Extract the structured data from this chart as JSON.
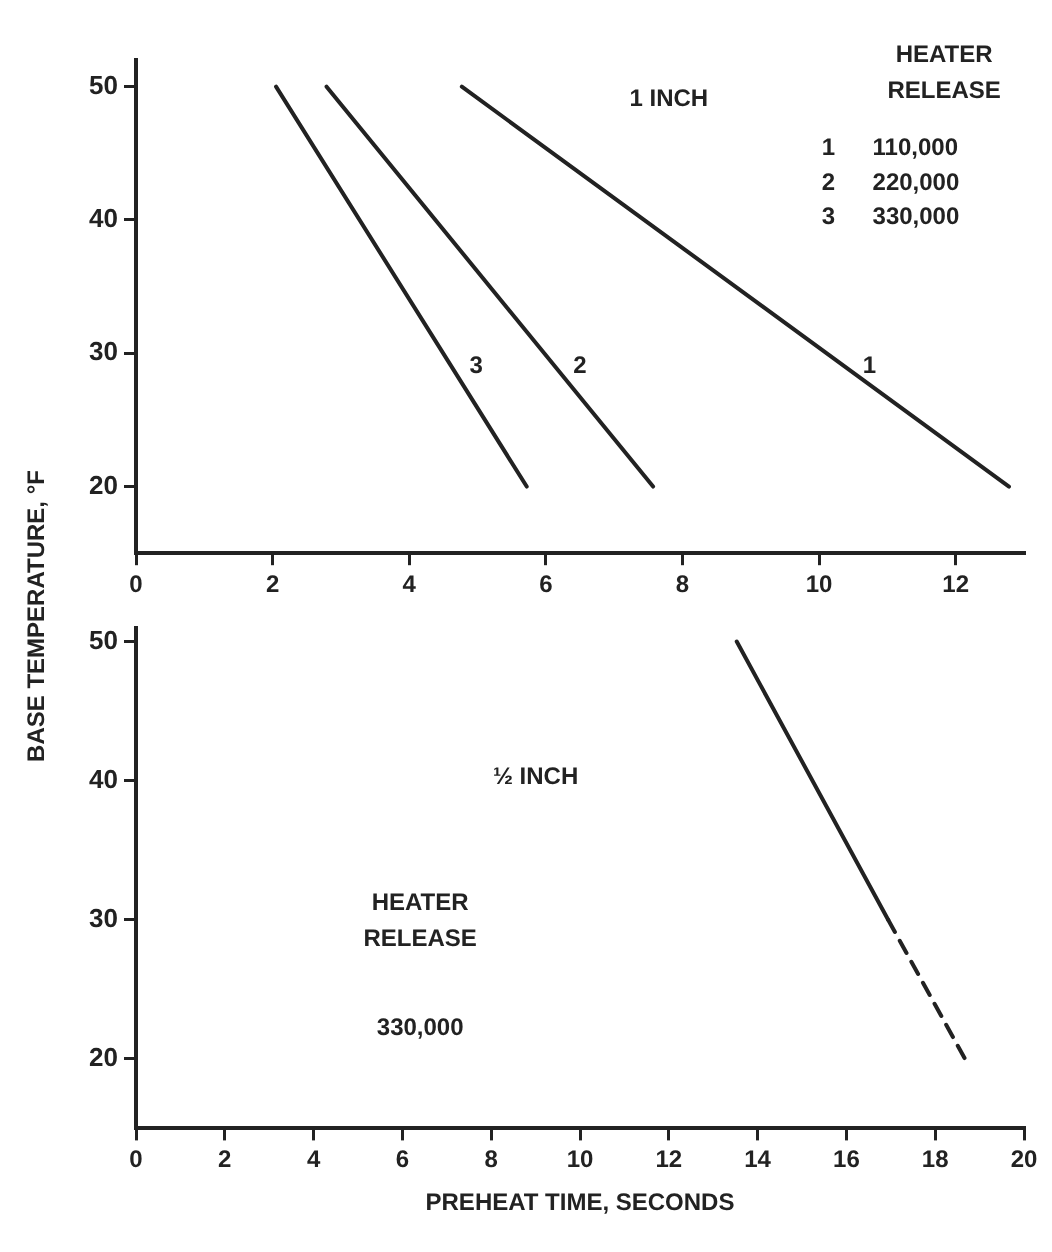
{
  "chart_data": [
    {
      "type": "line",
      "ylabel": "BASE TEMPERATURE, °F",
      "annotations": [
        "1 INCH",
        "HEATER RELEASE",
        "1 110,000",
        "2 220,000",
        "3 330,000"
      ],
      "xlim": [
        0,
        13
      ],
      "xticks": [
        0,
        2,
        4,
        6,
        8,
        10,
        12
      ],
      "ylim": [
        15,
        52
      ],
      "yticks": [
        20,
        30,
        40,
        50
      ],
      "grid": false,
      "marker": "none",
      "series": [
        {
          "name": "1",
          "color": "#222222",
          "x": [
            4.77,
            12.78
          ],
          "values": [
            50,
            20
          ]
        },
        {
          "name": "2",
          "color": "#222222",
          "x": [
            2.79,
            7.57
          ],
          "values": [
            50,
            20
          ]
        },
        {
          "name": "3",
          "color": "#222222",
          "x": [
            2.05,
            5.72
          ],
          "values": [
            50,
            20
          ]
        }
      ]
    },
    {
      "type": "line",
      "xlabel": "PREHEAT TIME, SECONDS",
      "annotations": [
        "½ INCH",
        "HEATER RELEASE",
        "330,000"
      ],
      "xlim": [
        0,
        20
      ],
      "xticks": [
        0,
        2,
        4,
        6,
        8,
        10,
        12,
        14,
        16,
        18,
        20
      ],
      "ylim": [
        15,
        51
      ],
      "yticks": [
        20,
        30,
        40,
        50
      ],
      "grid": false,
      "marker": "none",
      "series": [
        {
          "color": "#222222",
          "x": [
            13.53,
            16.94
          ],
          "values": [
            50,
            30
          ],
          "line_style": "solid"
        },
        {
          "color": "#222222",
          "x": [
            16.94,
            18.67
          ],
          "values": [
            30,
            20
          ],
          "line_style": "dashed"
        }
      ]
    }
  ]
}
